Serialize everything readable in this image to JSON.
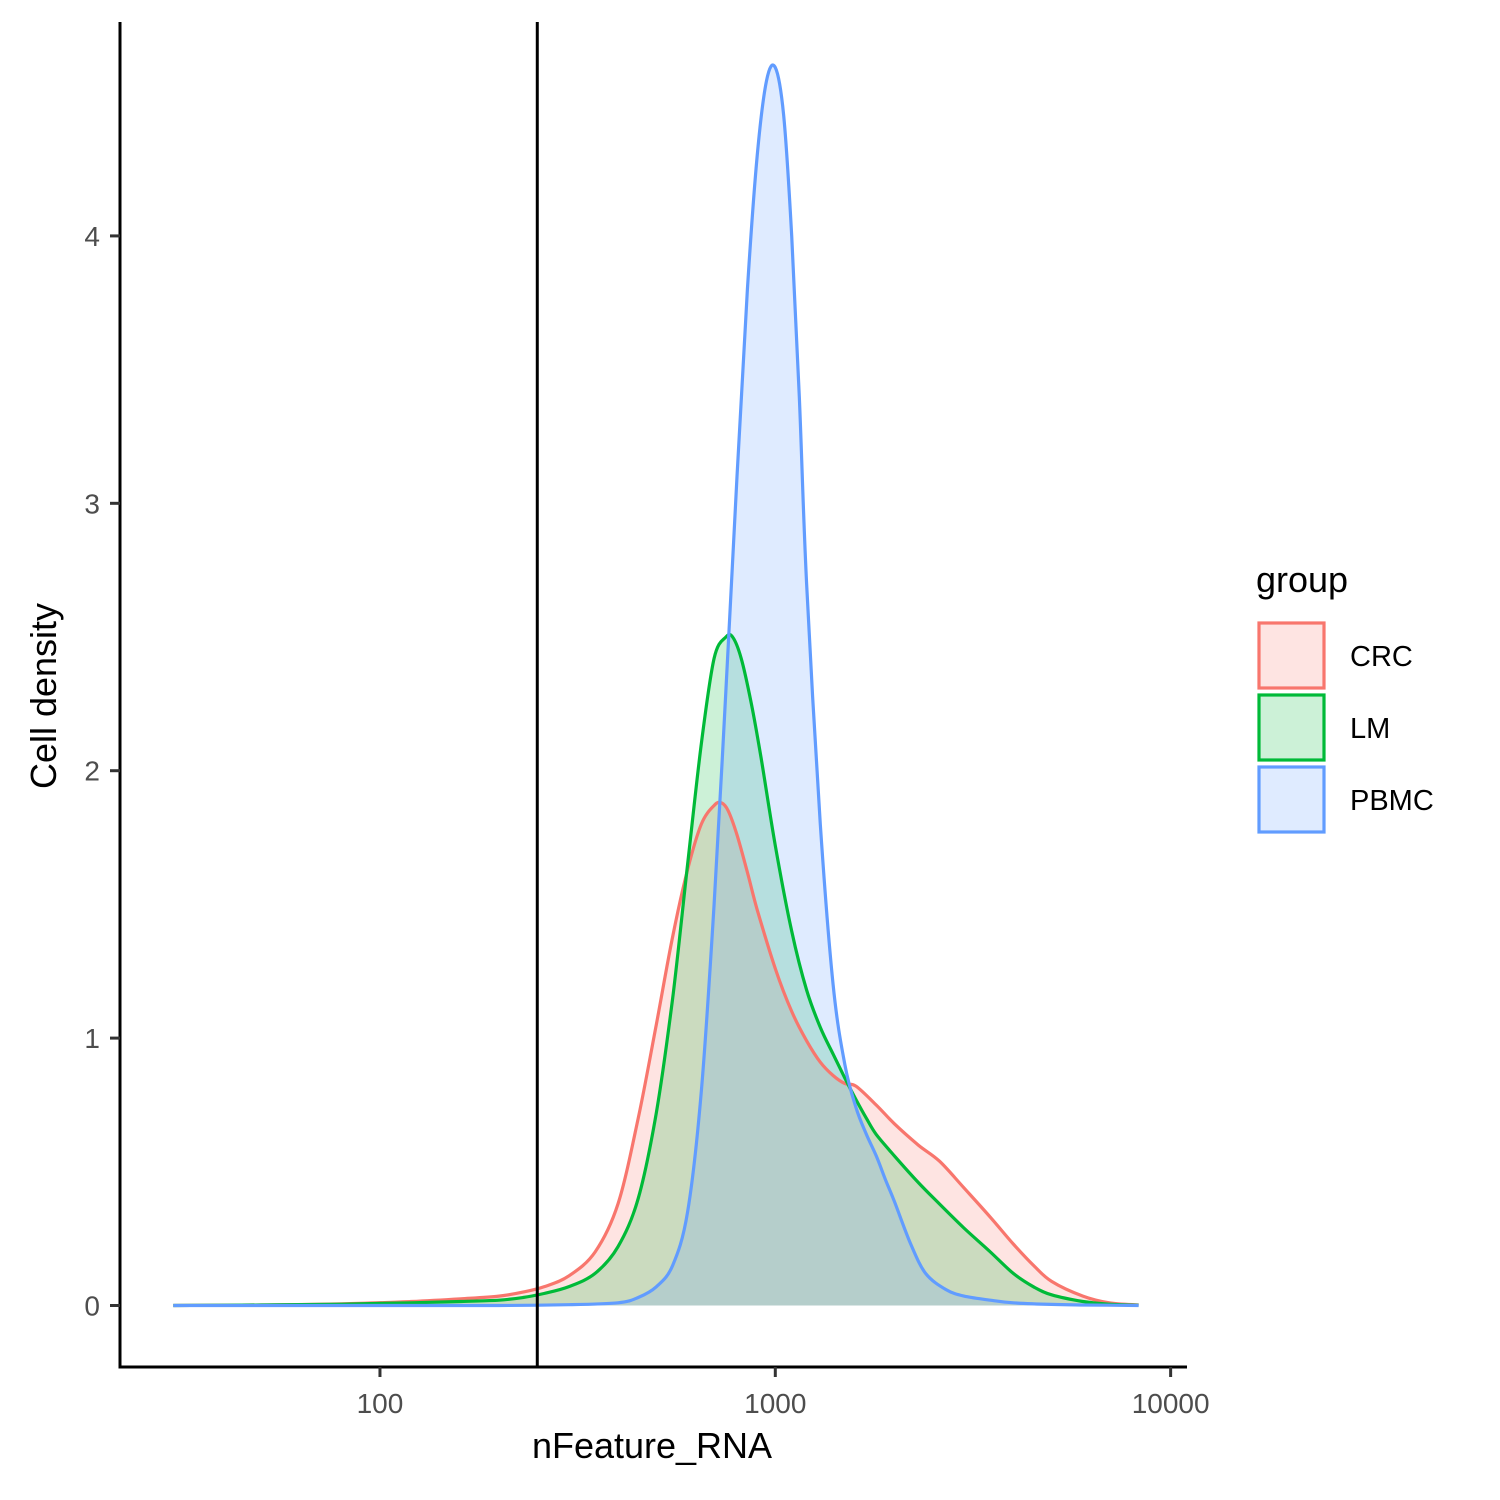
{
  "chart_data": {
    "type": "area",
    "xlabel": "nFeature_RNA",
    "ylabel": "Cell density",
    "x_scale": "log10",
    "xlim": [
      22,
      11000
    ],
    "ylim": [
      -0.23,
      4.8
    ],
    "x_ticks": [
      {
        "value": 100,
        "label": "100"
      },
      {
        "value": 1000,
        "label": "1000"
      },
      {
        "value": 10000,
        "label": "10000"
      }
    ],
    "y_ticks": [
      {
        "value": 0,
        "label": "0"
      },
      {
        "value": 1,
        "label": "1"
      },
      {
        "value": 2,
        "label": "2"
      },
      {
        "value": 3,
        "label": "3"
      },
      {
        "value": 4,
        "label": "4"
      }
    ],
    "vline": 250,
    "grid": false,
    "legend": {
      "title": "group",
      "placement": "right"
    },
    "series": [
      {
        "name": "CRC",
        "color": "#F8766D",
        "fill": "#FDE3E1",
        "x": [
          30,
          50,
          80,
          120,
          160,
          200,
          230,
          260,
          300,
          350,
          400,
          450,
          500,
          550,
          600,
          650,
          700,
          730,
          760,
          800,
          850,
          900,
          1000,
          1100,
          1200,
          1300,
          1400,
          1500,
          1600,
          1800,
          2000,
          2300,
          2600,
          3000,
          3500,
          4000,
          4500,
          5000,
          6000,
          7000,
          8300
        ],
        "y": [
          0,
          0.002,
          0.006,
          0.015,
          0.025,
          0.035,
          0.05,
          0.07,
          0.11,
          0.2,
          0.38,
          0.7,
          1.05,
          1.38,
          1.63,
          1.8,
          1.87,
          1.88,
          1.85,
          1.76,
          1.62,
          1.48,
          1.26,
          1.1,
          0.99,
          0.91,
          0.86,
          0.83,
          0.82,
          0.75,
          0.68,
          0.6,
          0.54,
          0.44,
          0.33,
          0.23,
          0.15,
          0.09,
          0.035,
          0.01,
          0.002
        ]
      },
      {
        "name": "LM",
        "color": "#00BA38",
        "fill": "#CCF1D7",
        "x": [
          30,
          50,
          80,
          120,
          160,
          200,
          230,
          260,
          300,
          350,
          400,
          450,
          500,
          550,
          600,
          650,
          700,
          750,
          780,
          820,
          870,
          920,
          1000,
          1100,
          1200,
          1300,
          1400,
          1500,
          1600,
          1700,
          1800,
          2000,
          2300,
          2600,
          3000,
          3500,
          4000,
          4500,
          5000,
          6000,
          7000,
          8300
        ],
        "y": [
          0,
          0.002,
          0.005,
          0.01,
          0.015,
          0.02,
          0.03,
          0.045,
          0.07,
          0.12,
          0.22,
          0.4,
          0.72,
          1.15,
          1.65,
          2.1,
          2.42,
          2.5,
          2.5,
          2.42,
          2.25,
          2.05,
          1.72,
          1.4,
          1.18,
          1.04,
          0.94,
          0.85,
          0.77,
          0.7,
          0.64,
          0.56,
          0.46,
          0.38,
          0.29,
          0.2,
          0.12,
          0.07,
          0.04,
          0.015,
          0.005,
          0.001
        ]
      },
      {
        "name": "PBMC",
        "color": "#619CFF",
        "fill": "#DFEBFF",
        "x": [
          30,
          100,
          200,
          300,
          400,
          450,
          500,
          550,
          600,
          650,
          700,
          750,
          800,
          850,
          900,
          950,
          1000,
          1050,
          1100,
          1150,
          1200,
          1300,
          1400,
          1500,
          1600,
          1700,
          1800,
          1900,
          2000,
          2200,
          2400,
          2700,
          3000,
          3500,
          4000,
          5000,
          6000,
          8300
        ],
        "y": [
          0,
          0,
          0,
          0.003,
          0.01,
          0.03,
          0.07,
          0.15,
          0.35,
          0.8,
          1.5,
          2.3,
          3.1,
          3.8,
          4.3,
          4.58,
          4.63,
          4.45,
          4.0,
          3.4,
          2.7,
          1.8,
          1.2,
          0.9,
          0.74,
          0.64,
          0.56,
          0.47,
          0.39,
          0.23,
          0.12,
          0.06,
          0.035,
          0.02,
          0.01,
          0.004,
          0.002,
          0
        ]
      }
    ]
  }
}
